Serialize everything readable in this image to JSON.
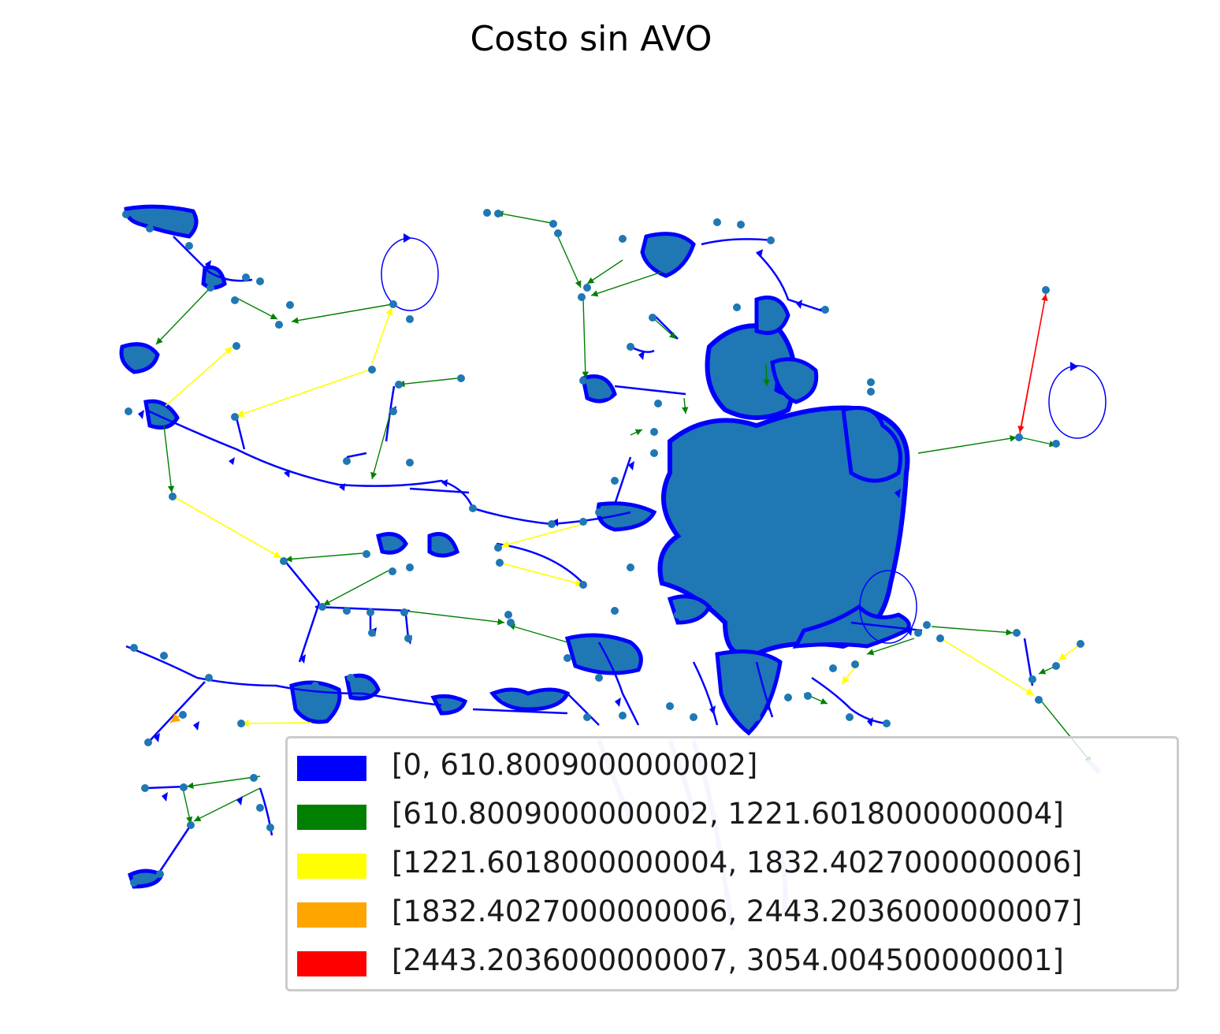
{
  "title": "Costo sin AVO",
  "colors": {
    "node": "#1f77b4",
    "bins": [
      "#0000ff",
      "#008000",
      "#ffff00",
      "#ffa500",
      "#ff0000"
    ]
  },
  "legend": {
    "items": [
      {
        "label": "[0, 610.8009000000002]",
        "color": "#0000ff"
      },
      {
        "label": "[610.8009000000002, 1221.6018000000004]",
        "color": "#008000"
      },
      {
        "label": "[1221.6018000000004, 1832.4027000000006]",
        "color": "#ffff00"
      },
      {
        "label": "[1832.4027000000006, 2443.2036000000007]",
        "color": "#ffa500"
      },
      {
        "label": "[2443.2036000000007, 3054.004500000001]",
        "color": "#ff0000"
      }
    ]
  }
}
